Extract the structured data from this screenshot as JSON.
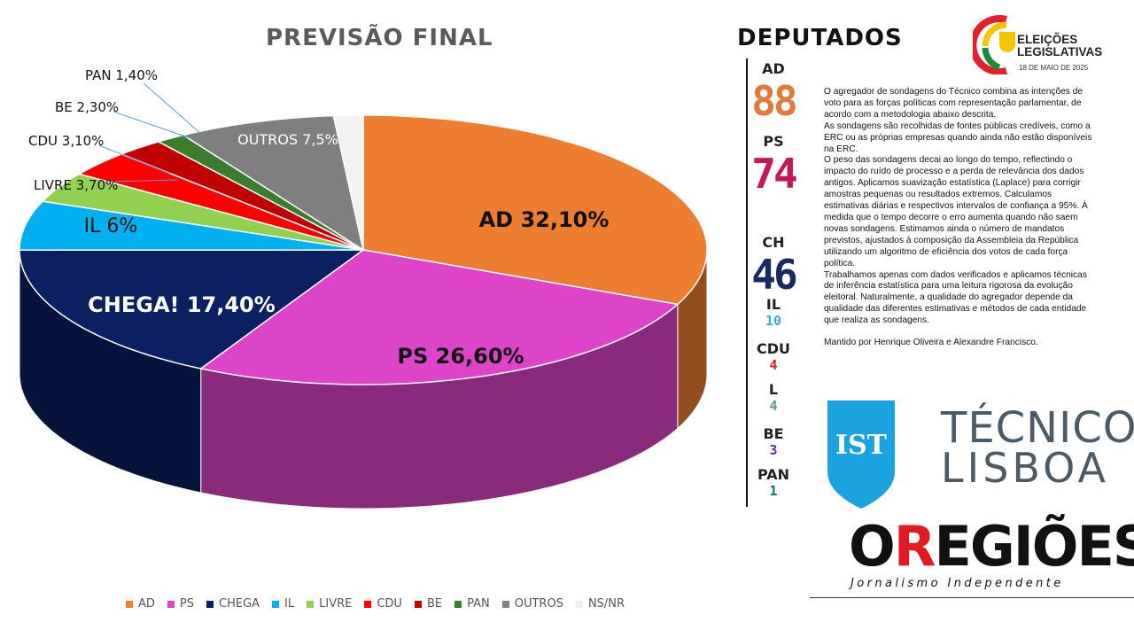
{
  "chart_data": {
    "type": "pie",
    "title": "PREVISÃO FINAL",
    "slices": [
      {
        "party": "AD",
        "label": "AD 32,10%",
        "value": 32.1,
        "color": "#ed7d31"
      },
      {
        "party": "PS",
        "label": "PS 26,60%",
        "value": 26.6,
        "color": "#dd44c8"
      },
      {
        "party": "CHEGA",
        "label": "CHEGA! 17,40%",
        "value": 17.4,
        "color": "#0a2060"
      },
      {
        "party": "IL",
        "label": "IL 6%",
        "value": 6.0,
        "color": "#00b0f0"
      },
      {
        "party": "LIVRE",
        "label": "LIVRE 3,70%",
        "value": 3.7,
        "color": "#92d050"
      },
      {
        "party": "CDU",
        "label": "CDU 3,10%",
        "value": 3.1,
        "color": "#ff0000"
      },
      {
        "party": "BE",
        "label": "BE 2,30%",
        "value": 2.3,
        "color": "#c00000"
      },
      {
        "party": "PAN",
        "label": "PAN 1,40%",
        "value": 1.4,
        "color": "#3a7d2c"
      },
      {
        "party": "OUTROS",
        "label": "OUTROS 7,5%",
        "value": 7.5,
        "color": "#7f7f7f"
      },
      {
        "party": "NS/NR",
        "label": "",
        "value": 1.4,
        "color": "#f2f2f2"
      }
    ],
    "legend": [
      "AD",
      "PS",
      "CHEGA",
      "IL",
      "LIVRE",
      "CDU",
      "BE",
      "PAN",
      "OUTROS",
      "NS/NR"
    ],
    "legend_position": "bottom"
  },
  "deputados": {
    "title": "DEPUTADOS",
    "items": [
      {
        "party": "AD",
        "seats": "88",
        "color": "#e2793a",
        "size": "big"
      },
      {
        "party": "PS",
        "seats": "74",
        "color": "#c2185b",
        "size": "big"
      },
      {
        "party": "CH",
        "seats": "46",
        "color": "#1b2a5e",
        "size": "big"
      },
      {
        "party": "IL",
        "seats": "10",
        "color": "#3aa6d6",
        "size": "small"
      },
      {
        "party": "CDU",
        "seats": "4",
        "color": "#c62828",
        "size": "small"
      },
      {
        "party": "L",
        "seats": "4",
        "color": "#5a9e6f",
        "size": "small"
      },
      {
        "party": "BE",
        "seats": "3",
        "color": "#6a2c91",
        "size": "small"
      },
      {
        "party": "PAN",
        "seats": "1",
        "color": "#0e6e73",
        "size": "small"
      }
    ]
  },
  "description": {
    "paragraphs": [
      "O agregador de sondagens do Técnico combina as intenções de voto para as forças políticas com representação parlamentar, de acordo com a metodologia abaixo descrita.",
      "As sondagens são recolhidas de fontes públicas credíveis, como a ERC ou as próprias empresas quando ainda não estão disponíveis na ERC.",
      "O peso das sondagens decai ao longo do tempo, reflectindo o impacto do ruído de processo e a perda de relevância dos dados antigos. Aplicamos suavização estatística (Laplace) para corrigir amostras pequenas ou resultados extremos. Calculamos estimativas diárias e respectivos intervalos de confiança a 95%. À medida que o tempo decorre o erro aumenta quando não saem novas sondagens. Estimamos ainda o número de mandatos previstos, ajustados à composição da Assembleia da República utilizando um algoritmo de eficiência dos votos de cada força política.",
      "Trabalhamos apenas com dados verificados e aplicamos técnicas de inferência estatística para uma leitura rigorosa da evolução eleitoral. Naturalmente, a qualidade do agregador depende da qualidade das diferentes estimativas e métodos de cada entidade que realiza as sondagens."
    ],
    "author": "Mantido por Henrique Oliveira e Alexandre Francisco."
  },
  "logos": {
    "elections_line1": "ELEIÇÕES",
    "elections_line2": "LEGISLATIVAS",
    "elections_date": "18 DE MAIO DE 2025",
    "tecnico_line1": "TÉCNICO",
    "tecnico_line2": "LISBOA",
    "tecnico_mark": "IST",
    "regioes_o": "O",
    "regioes_r": "R",
    "regioes_rest": "EGIÕES",
    "regioes_tagline": "Jornalismo Independente"
  }
}
